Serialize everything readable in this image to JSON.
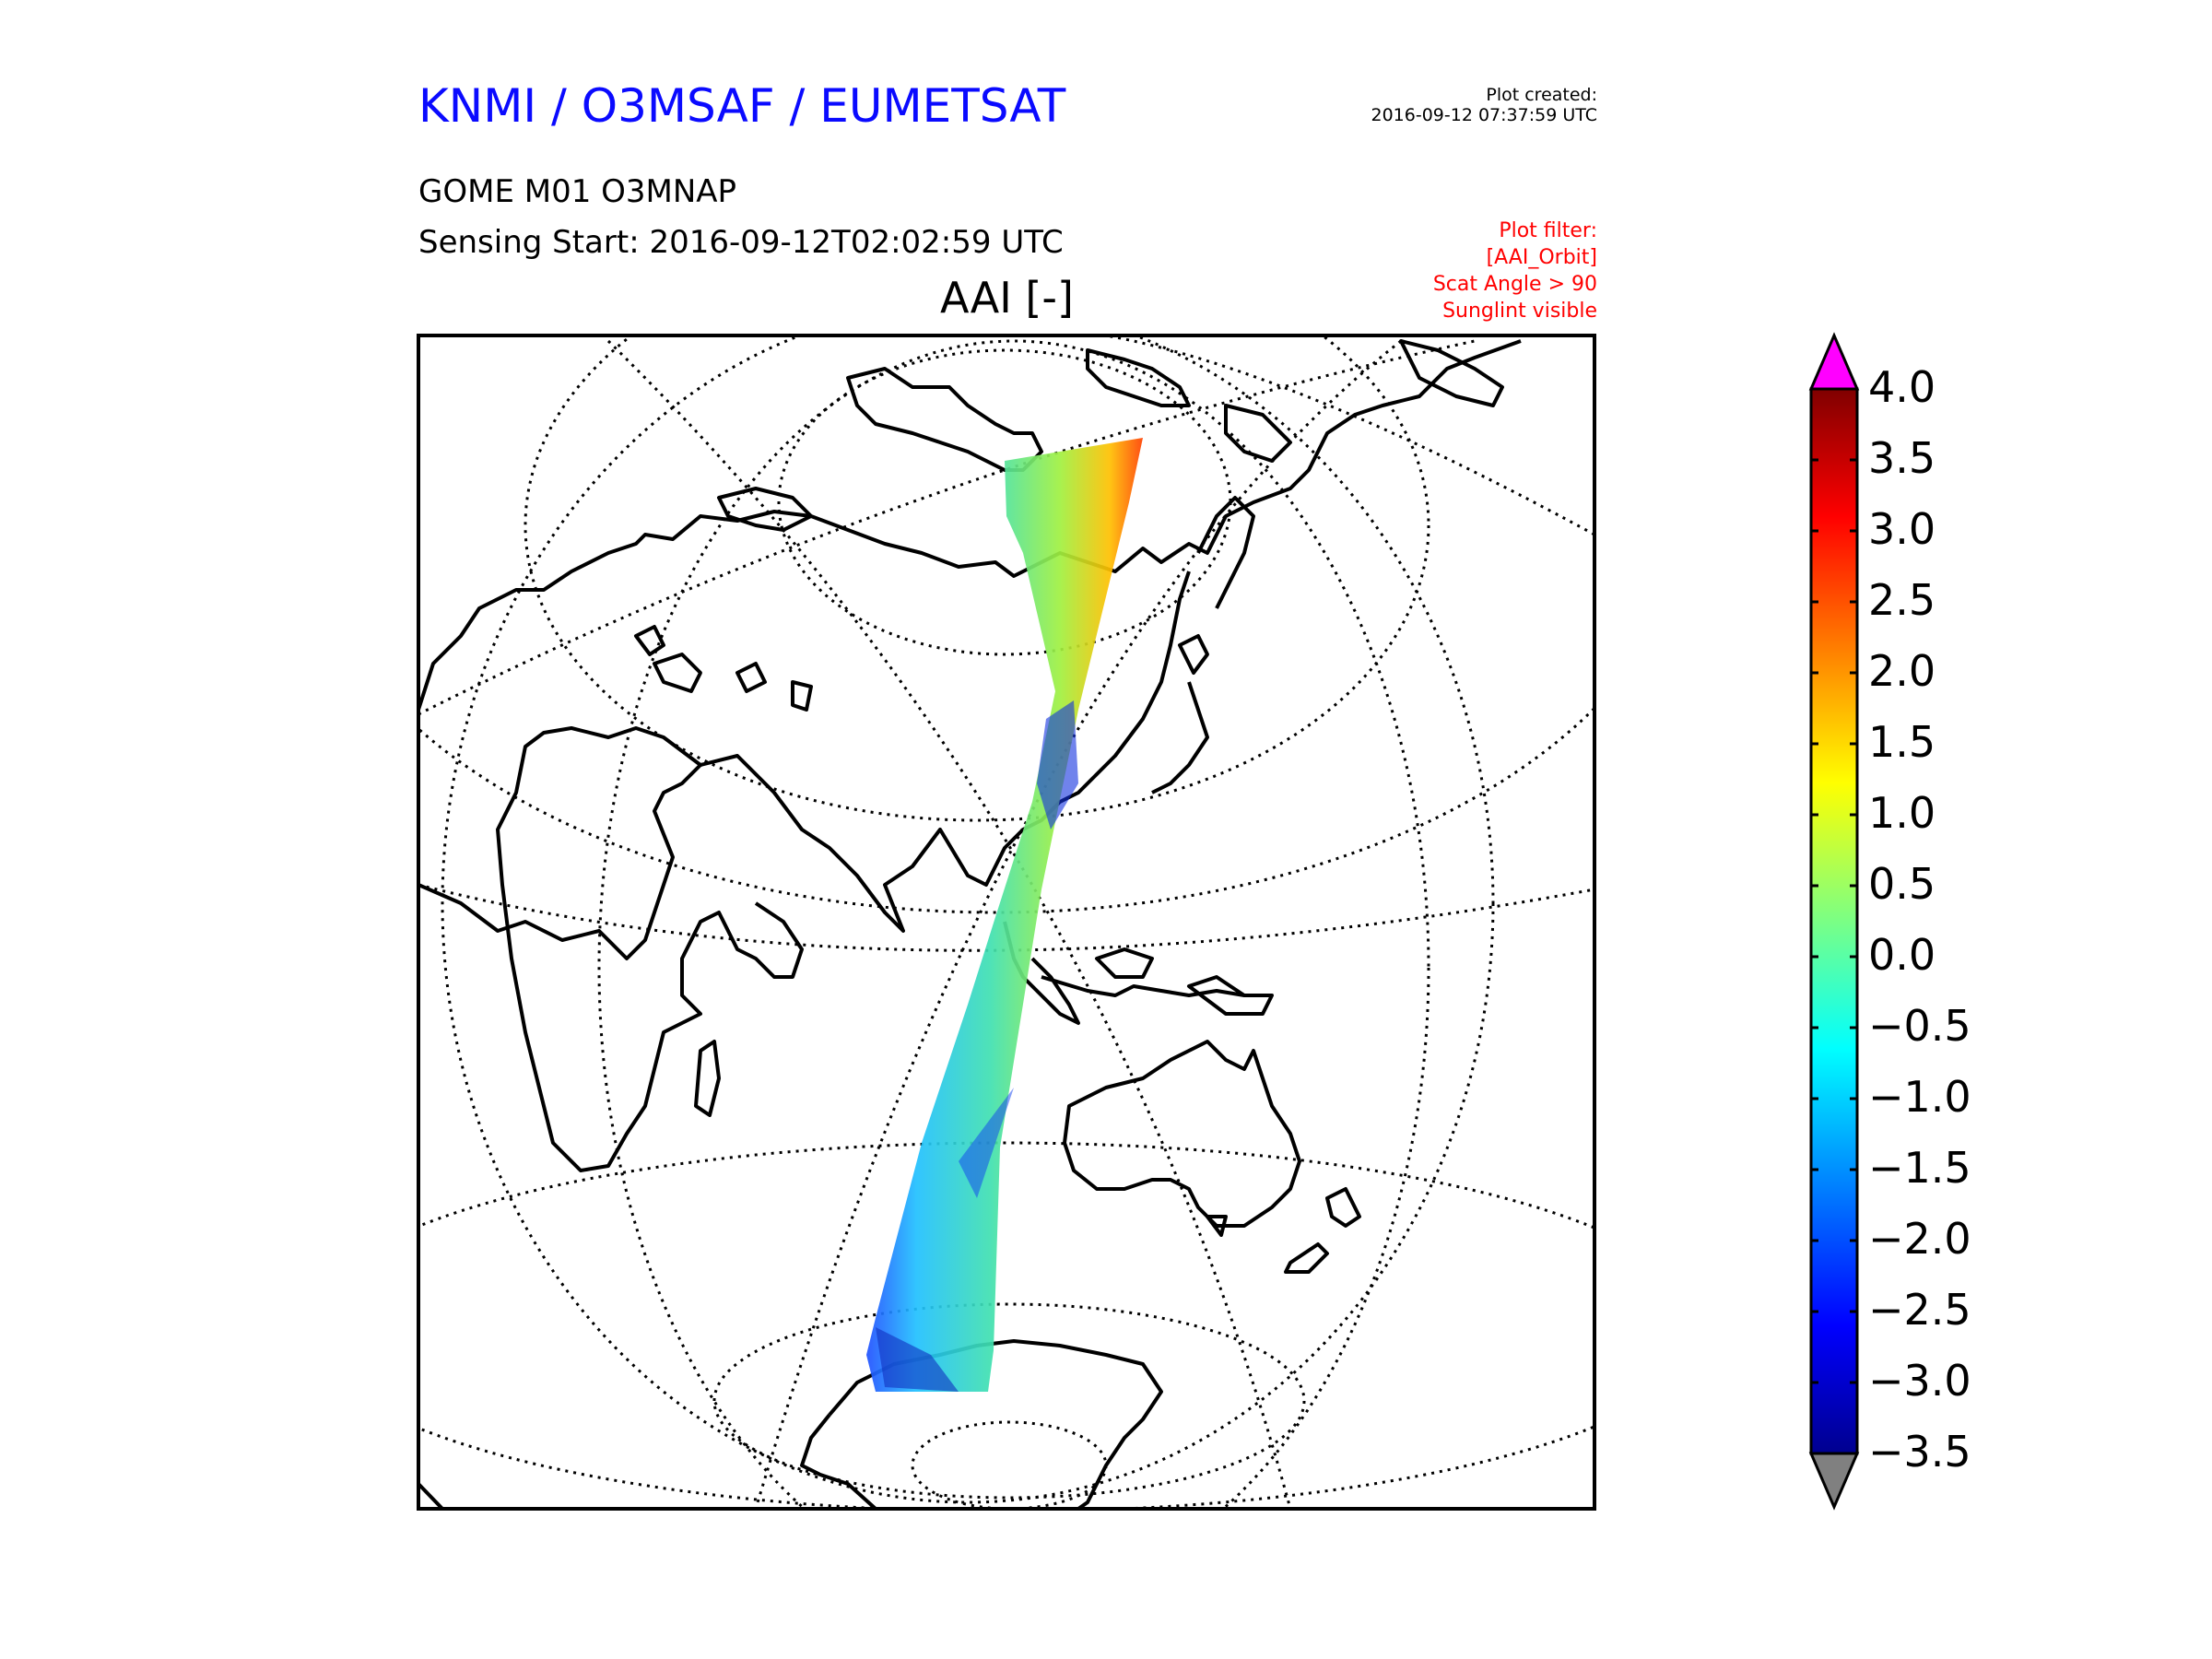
{
  "header": {
    "title": "KNMI / O3MSAF / EUMETSAT",
    "created_label": "Plot created:",
    "created_time": "2016-09-12 07:37:59 UTC",
    "product": "GOME M01 O3MNAP",
    "sensing_start": "Sensing Start: 2016-09-12T02:02:59 UTC",
    "filter_lines": [
      "Plot filter:",
      "[AAI_Orbit]",
      "Scat Angle > 90",
      "Sunglint visible"
    ]
  },
  "map": {
    "title": "AAI [-]",
    "projection": "orthographic",
    "grid": "dotted graticule",
    "swath_colormap": "jet"
  },
  "colorbar": {
    "ticks": [
      "4.0",
      "3.5",
      "3.0",
      "2.5",
      "2.0",
      "1.5",
      "1.0",
      "0.5",
      "0.0",
      "−0.5",
      "−1.0",
      "−1.5",
      "−2.0",
      "−2.5",
      "−3.0",
      "−3.5"
    ],
    "min": -3.5,
    "max": 4.0,
    "extend_max_color": "#ff00ff",
    "extend_min_color": "#808080"
  },
  "colors": {
    "title_blue": "#0a0aff",
    "filter_red": "#ff0000"
  }
}
